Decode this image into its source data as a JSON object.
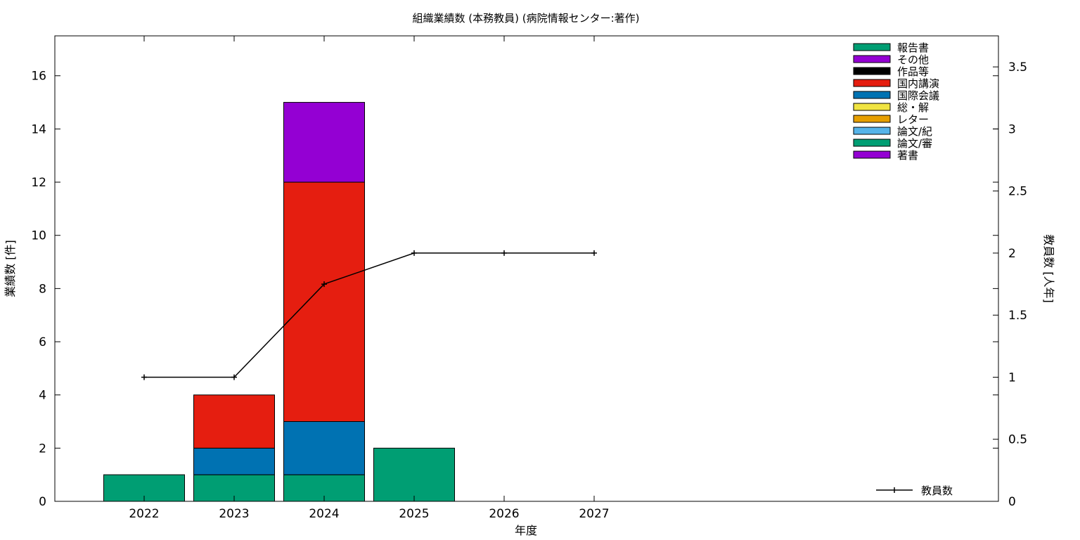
{
  "chart_data": {
    "type": "bar",
    "stacked": true,
    "title": "組織業績数 (本務教員) (病院情報センター:著作)",
    "xlabel": "年度",
    "ylabel": "業績数 [件]",
    "y2label": "教員数 [人年]",
    "categories": [
      "2022",
      "2023",
      "2024",
      "2025",
      "2026",
      "2027"
    ],
    "ylim": [
      0,
      17.5
    ],
    "yticks": [
      "0",
      "2",
      "4",
      "6",
      "8",
      "10",
      "12",
      "14",
      "16"
    ],
    "y2lim": [
      0,
      3.75
    ],
    "y2ticks": [
      "0",
      "0.5",
      "1",
      "1.5",
      "2",
      "2.5",
      "3",
      "3.5"
    ],
    "grid": false,
    "legend_position": "top-right",
    "legend": [
      {
        "name": "報告書",
        "color": "#009e73"
      },
      {
        "name": "その他",
        "color": "#9400d3"
      },
      {
        "name": "作品等",
        "color": "#000000"
      },
      {
        "name": "国内講演",
        "color": "#e51e10"
      },
      {
        "name": "国際会議",
        "color": "#0072b2"
      },
      {
        "name": "総・解",
        "color": "#f0e442"
      },
      {
        "name": "レター",
        "color": "#e69f00"
      },
      {
        "name": "論文/紀",
        "color": "#56b4e9"
      },
      {
        "name": "論文/審",
        "color": "#009e73"
      },
      {
        "name": "著書",
        "color": "#9400d3"
      }
    ],
    "series": [
      {
        "name": "論文/審",
        "color": "#009e73",
        "values": [
          1,
          1,
          1,
          2,
          0,
          0
        ]
      },
      {
        "name": "国際会議",
        "color": "#0072b2",
        "values": [
          0,
          1,
          2,
          0,
          0,
          0
        ]
      },
      {
        "name": "国内講演",
        "color": "#e51e10",
        "values": [
          0,
          2,
          9,
          0,
          0,
          0
        ]
      },
      {
        "name": "著書",
        "color": "#9400d3",
        "values": [
          0,
          0,
          3,
          0,
          0,
          0
        ]
      }
    ],
    "line_series": {
      "name": "教員数",
      "color": "#000000",
      "axis": "y2",
      "values": [
        1,
        1,
        1.75,
        2,
        2,
        2
      ]
    }
  }
}
